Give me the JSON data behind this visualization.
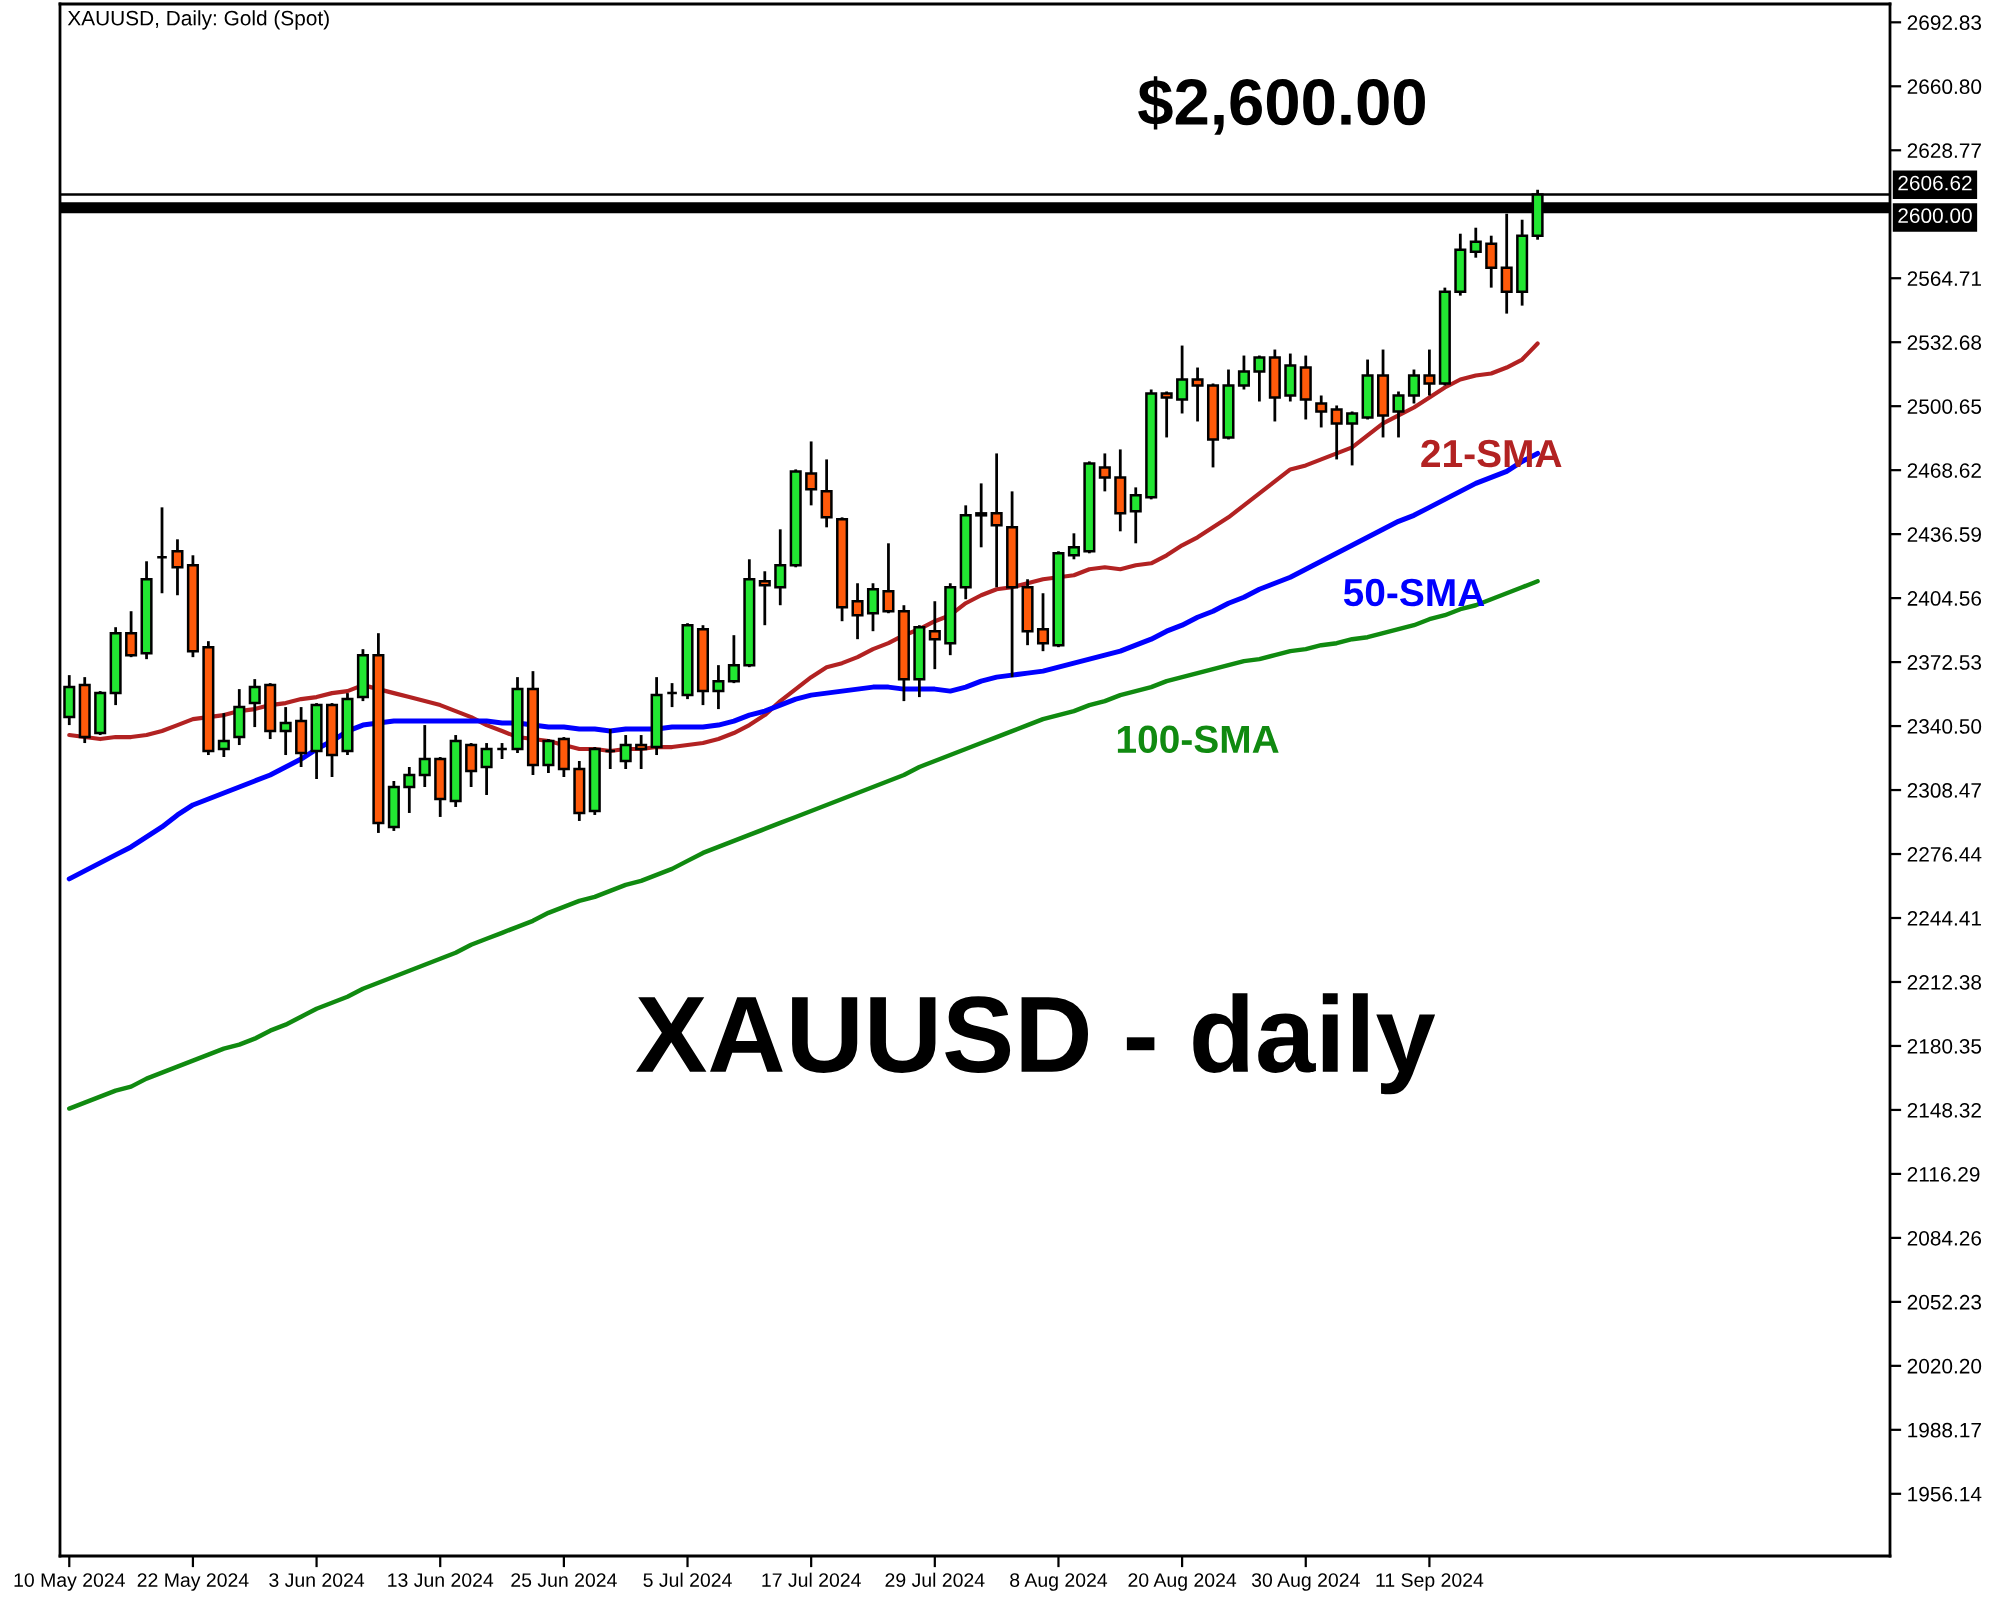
{
  "chart_data": {
    "type": "candlestick",
    "title": "XAUUSD, Daily: Gold (Spot)",
    "categories": [
      "10 May 2024",
      null,
      null,
      null,
      null,
      null,
      null,
      null,
      "22 May 2024",
      null,
      null,
      null,
      null,
      null,
      null,
      null,
      "3 Jun 2024",
      null,
      null,
      null,
      null,
      null,
      null,
      null,
      "13 Jun 2024",
      null,
      null,
      null,
      null,
      null,
      null,
      null,
      "25 Jun 2024",
      null,
      null,
      null,
      null,
      null,
      null,
      null,
      "5 Jul 2024",
      null,
      null,
      null,
      null,
      null,
      null,
      null,
      "17 Jul 2024",
      null,
      null,
      null,
      null,
      null,
      null,
      null,
      "29 Jul 2024",
      null,
      null,
      null,
      null,
      null,
      null,
      null,
      "8 Aug 2024",
      null,
      null,
      null,
      null,
      null,
      null,
      null,
      "20 Aug 2024",
      null,
      null,
      null,
      null,
      null,
      null,
      null,
      "30 Aug 2024",
      null,
      null,
      null,
      null,
      null,
      null,
      null,
      "11 Sep 2024",
      null,
      null,
      null,
      null,
      null,
      null,
      null
    ],
    "ohlc": [
      [
        2345,
        2366,
        2341,
        2360
      ],
      [
        2361,
        2365,
        2332,
        2335
      ],
      [
        2337,
        2358,
        2336,
        2357
      ],
      [
        2357,
        2390,
        2351,
        2387
      ],
      [
        2387,
        2398,
        2375,
        2376
      ],
      [
        2377,
        2423,
        2374,
        2414
      ],
      [
        2425,
        2450,
        2407,
        2425
      ],
      [
        2428,
        2434,
        2406,
        2420
      ],
      [
        2421,
        2426,
        2375,
        2378
      ],
      [
        2380,
        2383,
        2326,
        2328
      ],
      [
        2329,
        2347,
        2325,
        2333
      ],
      [
        2335,
        2359,
        2331,
        2350
      ],
      [
        2352,
        2364,
        2340,
        2360
      ],
      [
        2361,
        2362,
        2334,
        2338
      ],
      [
        2338,
        2350,
        2326,
        2342
      ],
      [
        2343,
        2350,
        2320,
        2327
      ],
      [
        2328,
        2352,
        2314,
        2351
      ],
      [
        2351,
        2352,
        2315,
        2326
      ],
      [
        2328,
        2357,
        2326,
        2354
      ],
      [
        2355,
        2379,
        2353,
        2376
      ],
      [
        2376,
        2387,
        2287,
        2292
      ],
      [
        2290,
        2313,
        2288,
        2310
      ],
      [
        2310,
        2320,
        2297,
        2316
      ],
      [
        2316,
        2341,
        2310,
        2324
      ],
      [
        2324,
        2325,
        2295,
        2304
      ],
      [
        2303,
        2336,
        2300,
        2333
      ],
      [
        2331,
        2332,
        2310,
        2318
      ],
      [
        2320,
        2332,
        2306,
        2329
      ],
      [
        2329,
        2332,
        2324,
        2329
      ],
      [
        2329,
        2365,
        2327,
        2359
      ],
      [
        2359,
        2368,
        2316,
        2321
      ],
      [
        2321,
        2334,
        2317,
        2333
      ],
      [
        2334,
        2335,
        2315,
        2319
      ],
      [
        2319,
        2323,
        2293,
        2297
      ],
      [
        2298,
        2330,
        2296,
        2329
      ],
      [
        2328,
        2339,
        2319,
        2328
      ],
      [
        2323,
        2336,
        2319,
        2331
      ],
      [
        2331,
        2336,
        2319,
        2329
      ],
      [
        2330,
        2365,
        2326,
        2356
      ],
      [
        2357,
        2362,
        2350,
        2357
      ],
      [
        2356,
        2392,
        2354,
        2391
      ],
      [
        2389,
        2391,
        2351,
        2358
      ],
      [
        2358,
        2371,
        2349,
        2363
      ],
      [
        2363,
        2386,
        2362,
        2371
      ],
      [
        2371,
        2424,
        2370,
        2414
      ],
      [
        2413,
        2418,
        2391,
        2411
      ],
      [
        2410,
        2439,
        2401,
        2421
      ],
      [
        2421,
        2469,
        2420,
        2468
      ],
      [
        2467,
        2483,
        2451,
        2459
      ],
      [
        2458,
        2474,
        2440,
        2445
      ],
      [
        2444,
        2445,
        2393,
        2400
      ],
      [
        2403,
        2412,
        2384,
        2396
      ],
      [
        2397,
        2412,
        2388,
        2409
      ],
      [
        2408,
        2432,
        2397,
        2398
      ],
      [
        2398,
        2401,
        2353,
        2364
      ],
      [
        2364,
        2391,
        2355,
        2390
      ],
      [
        2388,
        2403,
        2369,
        2384
      ],
      [
        2382,
        2412,
        2376,
        2410
      ],
      [
        2410,
        2451,
        2404,
        2446
      ],
      [
        2446,
        2462,
        2430,
        2447
      ],
      [
        2447,
        2477,
        2410,
        2441
      ],
      [
        2440,
        2458,
        2365,
        2410
      ],
      [
        2410,
        2414,
        2381,
        2388
      ],
      [
        2389,
        2407,
        2378,
        2382
      ],
      [
        2381,
        2428,
        2380,
        2427
      ],
      [
        2426,
        2437,
        2424,
        2430
      ],
      [
        2428,
        2473,
        2427,
        2472
      ],
      [
        2470,
        2477,
        2458,
        2465
      ],
      [
        2465,
        2479,
        2438,
        2447
      ],
      [
        2448,
        2460,
        2432,
        2456
      ],
      [
        2455,
        2509,
        2454,
        2507
      ],
      [
        2507,
        2508,
        2485,
        2505
      ],
      [
        2504,
        2531,
        2497,
        2514
      ],
      [
        2514,
        2520,
        2493,
        2511
      ],
      [
        2511,
        2512,
        2470,
        2484
      ],
      [
        2485,
        2519,
        2484,
        2511
      ],
      [
        2511,
        2526,
        2509,
        2518
      ],
      [
        2518,
        2526,
        2503,
        2525
      ],
      [
        2525,
        2529,
        2493,
        2505
      ],
      [
        2506,
        2527,
        2503,
        2521
      ],
      [
        2520,
        2526,
        2494,
        2504
      ],
      [
        2502,
        2506,
        2490,
        2498
      ],
      [
        2499,
        2501,
        2474,
        2492
      ],
      [
        2492,
        2498,
        2471,
        2497
      ],
      [
        2495,
        2524,
        2494,
        2516
      ],
      [
        2516,
        2529,
        2485,
        2496
      ],
      [
        2498,
        2508,
        2485,
        2506
      ],
      [
        2506,
        2519,
        2502,
        2516
      ],
      [
        2516,
        2529,
        2506,
        2512
      ],
      [
        2512,
        2560,
        2511,
        2558
      ],
      [
        2558,
        2587,
        2556,
        2579
      ],
      [
        2578,
        2590,
        2575,
        2583
      ],
      [
        2582,
        2586,
        2560,
        2570
      ],
      [
        2570,
        2597,
        2547,
        2558
      ],
      [
        2558,
        2594,
        2551,
        2586
      ],
      [
        2586,
        2609,
        2584,
        2606.62
      ]
    ],
    "colors": [
      "#22e632",
      "#ff5a0a",
      "#22e632",
      "#22e632",
      "#ff5a0a",
      "#22e632",
      "#000000",
      "#ff5a0a",
      "#ff5a0a",
      "#ff5a0a",
      "#22e632",
      "#22e632",
      "#22e632",
      "#ff5a0a",
      "#22e632",
      "#ff5a0a",
      "#22e632",
      "#ff5a0a",
      "#22e632",
      "#22e632",
      "#ff5a0a",
      "#22e632",
      "#22e632",
      "#22e632",
      "#ff5a0a",
      "#22e632",
      "#ff5a0a",
      "#22e632",
      "#000000",
      "#22e632",
      "#ff5a0a",
      "#22e632",
      "#ff5a0a",
      "#ff5a0a",
      "#22e632",
      "#000000",
      "#22e632",
      "#ff5a0a",
      "#22e632",
      "#000000",
      "#22e632",
      "#ff5a0a",
      "#22e632",
      "#22e632",
      "#22e632",
      "#ff5a0a",
      "#22e632",
      "#22e632",
      "#ff5a0a",
      "#ff5a0a",
      "#ff5a0a",
      "#ff5a0a",
      "#22e632",
      "#ff5a0a",
      "#ff5a0a",
      "#22e632",
      "#ff5a0a",
      "#22e632",
      "#22e632",
      "#22e632",
      "#ff5a0a",
      "#ff5a0a",
      "#ff5a0a",
      "#ff5a0a",
      "#22e632",
      "#22e632",
      "#22e632",
      "#ff5a0a",
      "#ff5a0a",
      "#22e632",
      "#22e632",
      "#ff5a0a",
      "#22e632",
      "#ff5a0a",
      "#ff5a0a",
      "#22e632",
      "#22e632",
      "#22e632",
      "#ff5a0a",
      "#22e632",
      "#ff5a0a",
      "#ff5a0a",
      "#ff5a0a",
      "#22e632",
      "#22e632",
      "#ff5a0a",
      "#22e632",
      "#22e632",
      "#ff5a0a",
      "#22e632",
      "#22e632",
      "#22e632",
      "#ff5a0a",
      "#ff5a0a",
      "#22e632",
      "#22e632"
    ],
    "series": [
      {
        "name": "21-SMA",
        "type": "line",
        "color": "#b22222",
        "values": [
          2336,
          2335,
          2334,
          2335,
          2335,
          2336,
          2338,
          2341,
          2344,
          2345,
          2346,
          2348,
          2349,
          2351,
          2352,
          2354,
          2355,
          2357,
          2358,
          2361,
          2359,
          2357,
          2355,
          2353,
          2351,
          2348,
          2345,
          2341,
          2338,
          2335,
          2334,
          2333,
          2331,
          2329,
          2329,
          2328,
          2329,
          2329,
          2330,
          2330,
          2331,
          2332,
          2334,
          2337,
          2341,
          2346,
          2353,
          2359,
          2365,
          2370,
          2372,
          2375,
          2379,
          2382,
          2386,
          2389,
          2393,
          2396,
          2402,
          2406,
          2409,
          2410,
          2412,
          2414,
          2415,
          2416,
          2419,
          2420,
          2419,
          2421,
          2422,
          2426,
          2431,
          2435,
          2440,
          2445,
          2451,
          2457,
          2463,
          2469,
          2471,
          2474,
          2477,
          2480,
          2486,
          2492,
          2496,
          2500,
          2505,
          2510,
          2514,
          2516,
          2517,
          2520,
          2524,
          2532
        ]
      },
      {
        "name": "50-SMA",
        "type": "line",
        "color": "#0000ff",
        "values": [
          2264,
          2268,
          2272,
          2276,
          2280,
          2285,
          2290,
          2296,
          2301,
          2304,
          2307,
          2310,
          2313,
          2316,
          2320,
          2324,
          2329,
          2333,
          2338,
          2341,
          2342,
          2343,
          2343,
          2343,
          2343,
          2343,
          2343,
          2343,
          2342,
          2342,
          2341,
          2340,
          2340,
          2339,
          2339,
          2338,
          2339,
          2339,
          2339,
          2340,
          2340,
          2340,
          2341,
          2343,
          2346,
          2348,
          2351,
          2354,
          2356,
          2357,
          2358,
          2359,
          2360,
          2360,
          2359,
          2359,
          2359,
          2358,
          2360,
          2363,
          2365,
          2366,
          2367,
          2368,
          2370,
          2372,
          2374,
          2376,
          2378,
          2381,
          2384,
          2388,
          2391,
          2395,
          2398,
          2402,
          2405,
          2409,
          2412,
          2415,
          2419,
          2423,
          2427,
          2431,
          2435,
          2439,
          2443,
          2446,
          2450,
          2454,
          2458,
          2462,
          2465,
          2468,
          2473,
          2477
        ]
      },
      {
        "name": "100-SMA",
        "type": "line",
        "color": "#108a10",
        "values": [
          2149,
          2152,
          2155,
          2158,
          2160,
          2164,
          2167,
          2170,
          2173,
          2176,
          2179,
          2181,
          2184,
          2188,
          2191,
          2195,
          2199,
          2202,
          2205,
          2209,
          2212,
          2215,
          2218,
          2221,
          2224,
          2227,
          2231,
          2234,
          2237,
          2240,
          2243,
          2247,
          2250,
          2253,
          2255,
          2258,
          2261,
          2263,
          2266,
          2269,
          2273,
          2277,
          2280,
          2283,
          2286,
          2289,
          2292,
          2295,
          2298,
          2301,
          2304,
          2307,
          2310,
          2313,
          2316,
          2320,
          2323,
          2326,
          2329,
          2332,
          2335,
          2338,
          2341,
          2344,
          2346,
          2348,
          2351,
          2353,
          2356,
          2358,
          2360,
          2363,
          2365,
          2367,
          2369,
          2371,
          2373,
          2374,
          2376,
          2378,
          2379,
          2381,
          2382,
          2384,
          2385,
          2387,
          2389,
          2391,
          2394,
          2396,
          2399,
          2401,
          2404,
          2407,
          2410,
          2413
        ]
      }
    ],
    "ylim": [
      1925,
      2702
    ],
    "yticks": [
      2692.83,
      {
        "value": 2660.8,
        "label": "2660.80"
      },
      2628.77,
      2564.71,
      2532.68,
      2500.65,
      2468.62,
      2436.59,
      2404.56,
      2372.53,
      {
        "value": 2340.5,
        "label": "2340.50"
      },
      2308.47,
      2276.44,
      2244.41,
      2212.38,
      2180.35,
      2148.32,
      2116.29,
      2084.26,
      2052.23,
      {
        "value": 2020.2,
        "label": "2020.20"
      },
      1988.17,
      1956.14
    ],
    "ref_lines": [
      {
        "axis": "y",
        "value": 2600,
        "label": "2600.00",
        "color": "#000000"
      },
      {
        "axis": "y",
        "value": 2606.62,
        "label": "2606.62",
        "color": "#000000"
      }
    ],
    "annotations": [
      {
        "text": "$2,600.00",
        "y": 2600
      },
      "XAUUSD - daily"
    ]
  }
}
